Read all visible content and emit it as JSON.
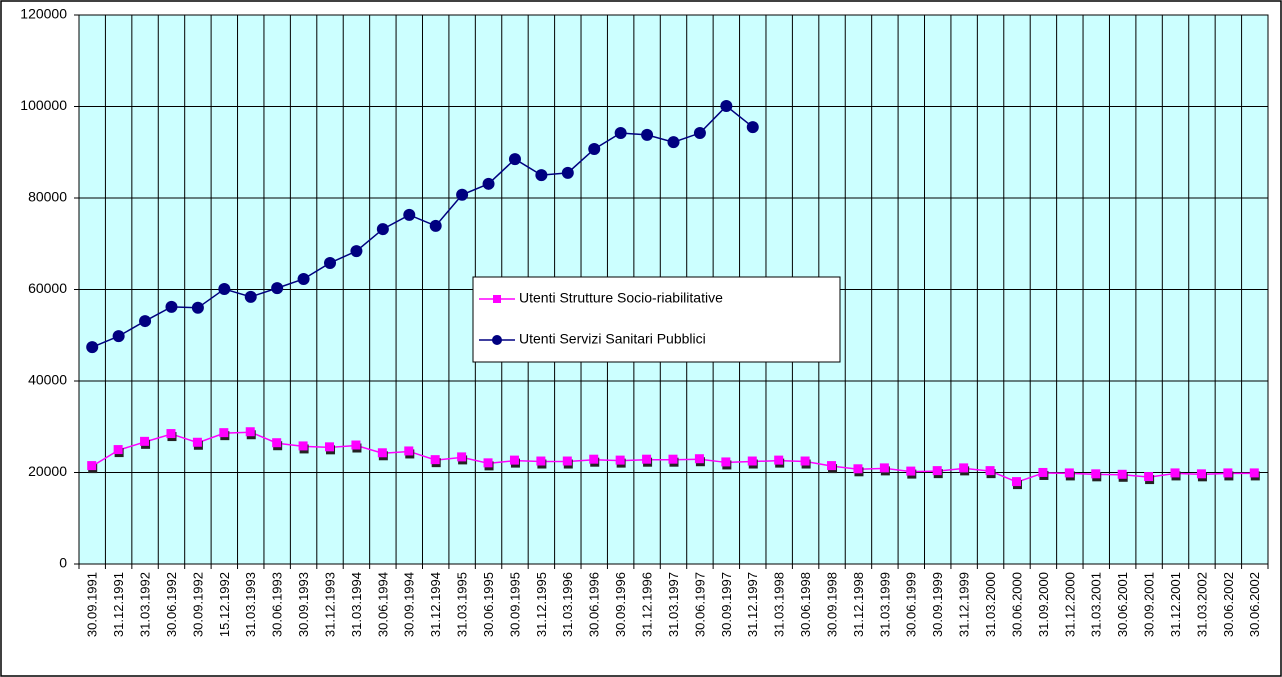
{
  "chart_data": {
    "type": "line",
    "categories": [
      "30.09.1991",
      "31.12.1991",
      "31.03.1992",
      "30.06.1992",
      "30.09.1992",
      "15.12.1992",
      "31.03.1993",
      "30.06.1993",
      "30.09.1993",
      "31.12.1993",
      "31.03.1994",
      "30.06.1994",
      "30.09.1994",
      "31.12.1994",
      "31.03.1995",
      "30.06.1995",
      "30.09.1995",
      "31.12.1995",
      "31.03.1996",
      "30.06.1996",
      "30.09.1996",
      "31.12.1996",
      "31.03.1997",
      "30.06.1997",
      "30.09.1997",
      "31.12.1997",
      "31.03.1998",
      "30.06.1998",
      "30.09.1998",
      "31.12.1998",
      "31.03.1999",
      "30.06.1999",
      "30.09.1999",
      "31.12.1999",
      "31.03.2000",
      "30.06.2000",
      "31.09.2000",
      "31.12.2000",
      "31.03.2001",
      "30.06.2001",
      "30.09.2001",
      "31.12.2001",
      "31.03.2002",
      "30.06.2002",
      "30.06.2002"
    ],
    "series": [
      {
        "name": "Utenti Strutture Socio-riabilitative",
        "color": "#ff00ff",
        "marker": "square",
        "values": [
          21400,
          24900,
          26700,
          28400,
          26500,
          28600,
          28800,
          26400,
          25700,
          25500,
          25900,
          24200,
          24600,
          22700,
          23300,
          22000,
          22600,
          22400,
          22400,
          22800,
          22600,
          22800,
          22800,
          22900,
          22200,
          22400,
          22600,
          22400,
          21400,
          20700,
          20900,
          20200,
          20300,
          20900,
          20300,
          17900,
          19900,
          19800,
          19600,
          19500,
          19000,
          19800,
          19600,
          19800,
          19800
        ]
      },
      {
        "name": "Utenti Servizi Sanitari Pubblici",
        "color": "#000080",
        "marker": "circle",
        "values": [
          47400,
          49800,
          53100,
          56200,
          56000,
          60100,
          58400,
          60300,
          62300,
          65800,
          68400,
          73200,
          76300,
          73900,
          80700,
          83100,
          88500,
          85000,
          85500,
          90700,
          94200,
          93800,
          92200,
          94200,
          100100,
          95500,
          null,
          null,
          null,
          null,
          null,
          null,
          null,
          null,
          null,
          null,
          null,
          null,
          null,
          null,
          null,
          null,
          null,
          null,
          null
        ]
      }
    ],
    "ylim": [
      0,
      120000
    ],
    "yticks": [
      0,
      20000,
      40000,
      60000,
      80000,
      100000,
      120000
    ],
    "grid": true,
    "legend": "center",
    "background": "#ccffff"
  }
}
